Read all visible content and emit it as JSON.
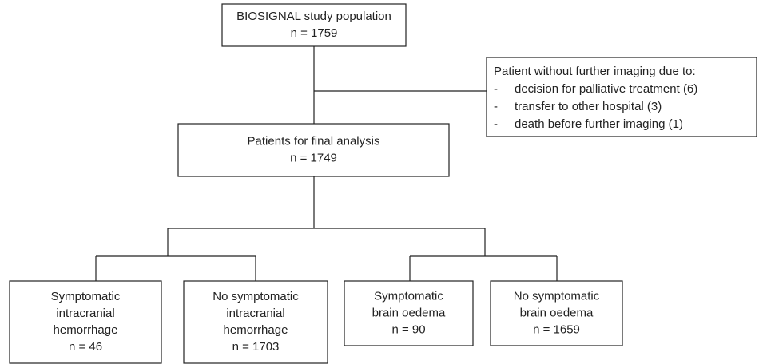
{
  "nodes": [
    {
      "lines": [
        "BIOSIGNAL study population",
        "n = 1759"
      ]
    },
    {
      "lines": [
        "Patients for final analysis",
        "n = 1749"
      ]
    },
    {
      "lines": [
        "Symptomatic",
        "intracranial",
        "hemorrhage",
        "n = 46"
      ]
    },
    {
      "lines": [
        "No symptomatic",
        "intracranial",
        "hemorrhage",
        "n = 1703"
      ]
    },
    {
      "lines": [
        "Symptomatic",
        "brain oedema",
        "n = 90"
      ]
    },
    {
      "lines": [
        "No symptomatic",
        "brain oedema",
        "n = 1659"
      ]
    }
  ],
  "exclusion": {
    "title": "Patient without further imaging due to:",
    "items": [
      {
        "bullet": "-",
        "text": "decision for palliative treatment (6)"
      },
      {
        "bullet": "-",
        "text": "transfer to other hospital (3)"
      },
      {
        "bullet": "-",
        "text": "death before further imaging (1)"
      }
    ]
  }
}
